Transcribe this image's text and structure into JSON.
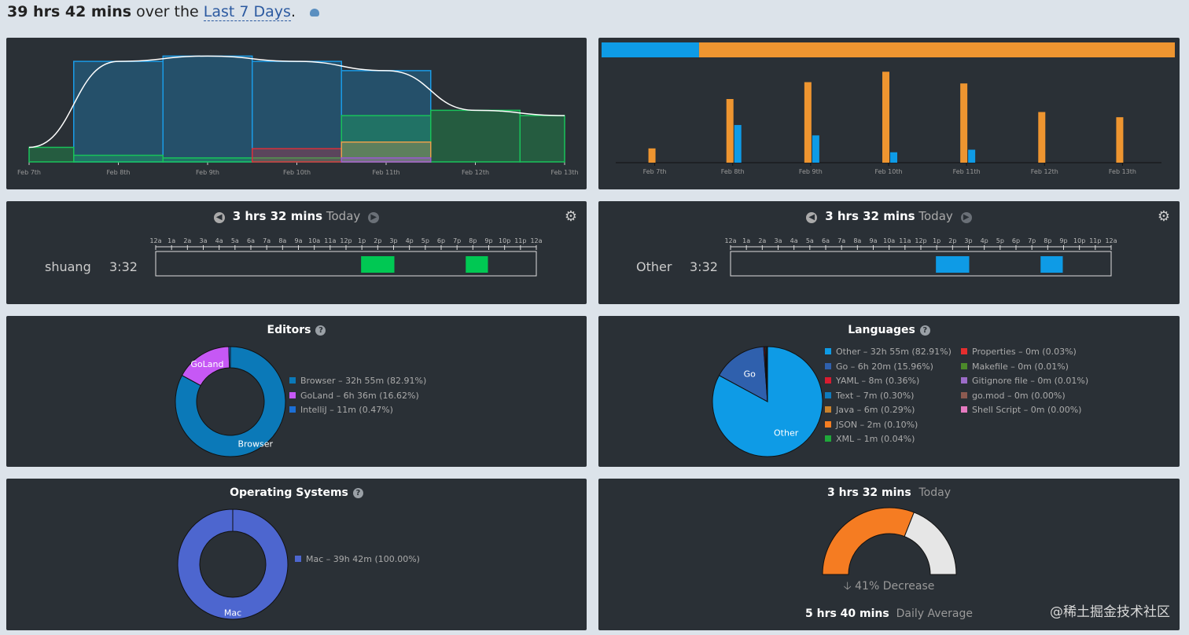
{
  "header": {
    "total": "39 hrs 42 mins",
    "middle": "over the",
    "range": "Last 7 Days",
    "period": ".",
    "icon": "cloud-download-icon"
  },
  "chart_data": [
    {
      "type": "area",
      "x": [
        "Feb 7th",
        "Feb 8th",
        "Feb 9th",
        "Feb 10th",
        "Feb 11th",
        "Feb 12th",
        "Feb 13th"
      ],
      "series": [
        {
          "color": "#1a9be6",
          "values": [
            0,
            7.6,
            8.0,
            7.6,
            6.9,
            0,
            0
          ]
        },
        {
          "color": "#19c25a",
          "values": [
            1.1,
            0.5,
            0.3,
            0.3,
            3.5,
            3.9,
            3.5
          ]
        },
        {
          "color": "#d9303a",
          "values": [
            0,
            0,
            0,
            1.0,
            0,
            0,
            0
          ]
        },
        {
          "color": "#e8a04c",
          "values": [
            0,
            0,
            0,
            0,
            1.5,
            0,
            0
          ]
        },
        {
          "color": "#9b59d0",
          "values": [
            0,
            0,
            0,
            0,
            0.3,
            0,
            0
          ]
        },
        {
          "color": "#ffffff",
          "line": true,
          "values": [
            1.1,
            7.6,
            8.0,
            7.6,
            6.9,
            3.9,
            3.5
          ]
        }
      ],
      "ylim": [
        0,
        8.2
      ]
    },
    {
      "type": "bar",
      "x": [
        "Feb 7th",
        "Feb 8th",
        "Feb 9th",
        "Feb 10th",
        "Feb 11th",
        "Feb 12th",
        "Feb 13th"
      ],
      "series": [
        {
          "color": "#ee9530",
          "values": [
            1.1,
            4.9,
            6.2,
            7.0,
            6.1,
            3.9,
            3.5
          ]
        },
        {
          "color": "#0e9be6",
          "values": [
            0,
            2.9,
            2.1,
            0.8,
            1.0,
            0,
            0
          ]
        }
      ],
      "ylim": [
        0,
        7.2
      ],
      "stacked_bar": [
        {
          "color": "#0e9be6",
          "fraction": 0.17
        },
        {
          "color": "#ee9530",
          "fraction": 0.83
        }
      ]
    }
  ],
  "timelines": [
    {
      "total": "3 hrs 32 mins",
      "label": "Today",
      "name": "shuang",
      "duration": "3:32",
      "color": "#00c853",
      "segments": [
        [
          12.95,
          15.05
        ],
        [
          19.55,
          20.95
        ]
      ]
    },
    {
      "total": "3 hrs 32 mins",
      "label": "Today",
      "name": "Other",
      "duration": "3:32",
      "color": "#0e9be6",
      "segments": [
        [
          12.95,
          15.05
        ],
        [
          19.55,
          20.95
        ]
      ]
    }
  ],
  "hours": [
    "12a",
    "1a",
    "2a",
    "3a",
    "4a",
    "5a",
    "6a",
    "7a",
    "8a",
    "9a",
    "10a",
    "11a",
    "12p",
    "1p",
    "2p",
    "3p",
    "4p",
    "5p",
    "6p",
    "7p",
    "8p",
    "9p",
    "10p",
    "11p",
    "12a"
  ],
  "editors": {
    "title": "Editors",
    "items": [
      {
        "name": "Browser",
        "label": "Browser – 32h 55m (82.91%)",
        "pct": 82.91,
        "color": "#0b79b8"
      },
      {
        "name": "GoLand",
        "label": "GoLand – 6h 36m (16.62%)",
        "pct": 16.62,
        "color": "#c658f5"
      },
      {
        "name": "IntelliJ",
        "label": "IntelliJ – 11m (0.47%)",
        "pct": 0.47,
        "color": "#1c6fd6"
      }
    ]
  },
  "languages": {
    "title": "Languages",
    "items": [
      {
        "name": "Other",
        "label": "Other – 32h 55m (82.91%)",
        "pct": 82.91,
        "color": "#0e9be6"
      },
      {
        "name": "Go",
        "label": "Go – 6h 20m (15.96%)",
        "pct": 15.96,
        "color": "#2f60ad"
      },
      {
        "label": "YAML – 8m (0.36%)",
        "pct": 0.36,
        "color": "#d81c30"
      },
      {
        "label": "Text – 7m (0.30%)",
        "pct": 0.3,
        "color": "#0f7bbd"
      },
      {
        "label": "Java – 6m (0.29%)",
        "pct": 0.29,
        "color": "#c9822c"
      },
      {
        "label": "JSON – 2m (0.10%)",
        "pct": 0.1,
        "color": "#f57e22"
      },
      {
        "label": "XML – 1m (0.04%)",
        "pct": 0.04,
        "color": "#1fa83a"
      },
      {
        "label": "Properties – 0m (0.03%)",
        "pct": 0.03,
        "color": "#e52e2e"
      },
      {
        "label": "Makefile – 0m (0.01%)",
        "pct": 0.01,
        "color": "#4c8a2a"
      },
      {
        "label": "Gitignore file – 0m (0.01%)",
        "pct": 0.01,
        "color": "#9c6cc8"
      },
      {
        "label": "go.mod – 0m (0.00%)",
        "pct": 0,
        "color": "#8c5a50"
      },
      {
        "label": "Shell Script – 0m (0.00%)",
        "pct": 0,
        "color": "#e57ac0"
      }
    ]
  },
  "os": {
    "title": "Operating Systems",
    "items": [
      {
        "name": "Mac",
        "label": "Mac – 39h 42m (100.00%)",
        "pct": 100,
        "color": "#4d66cf"
      }
    ]
  },
  "goal": {
    "today_value": "3 hrs 32 mins",
    "today_label": "Today",
    "fraction": 0.62,
    "change": "41% Decrease",
    "avg_value": "5 hrs 40 mins",
    "avg_label": "Daily Average",
    "fill": "#f57c22",
    "rest": "#e6e6e6"
  },
  "watermark": "@稀土掘金技术社区"
}
